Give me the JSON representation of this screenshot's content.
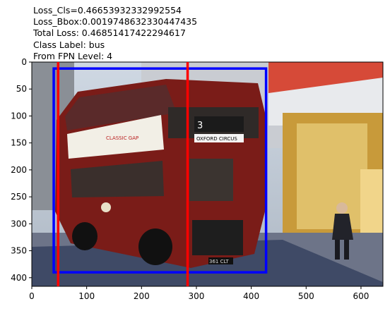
{
  "header_lines": [
    "Loss_Cls=0.46653932332992554",
    "Loss_Bbox:0.0019748632330447435",
    "Total Loss: 0.46851417422294617",
    "Class Label: bus",
    "From FPN Level: 4"
  ],
  "axes": {
    "x_ticks": [
      "0",
      "100",
      "200",
      "300",
      "400",
      "500",
      "600"
    ],
    "y_ticks": [
      "0",
      "50",
      "100",
      "150",
      "200",
      "250",
      "300",
      "350",
      "400"
    ],
    "x_range": [
      0,
      640
    ],
    "y_range": [
      0,
      416
    ]
  },
  "annotations": {
    "box": {
      "x0": 40,
      "y0": 12,
      "x1": 427,
      "y1": 390,
      "color": "#0000ff",
      "label": "bus"
    },
    "vertical_lines": [
      {
        "x": 48,
        "color": "#ff0000"
      },
      {
        "x": 284,
        "color": "#ff0000"
      }
    ]
  },
  "scene": {
    "bus_front_text": "OXFORD CIRCUS",
    "route_number": "3",
    "side_ad": "CLASSIC GAP",
    "plate": "361 CLT"
  },
  "colors": {
    "bus_red": "#7a1c18",
    "sky": "#dfe7ee",
    "road": "#3f4a66",
    "shop": "#c89a3a"
  }
}
